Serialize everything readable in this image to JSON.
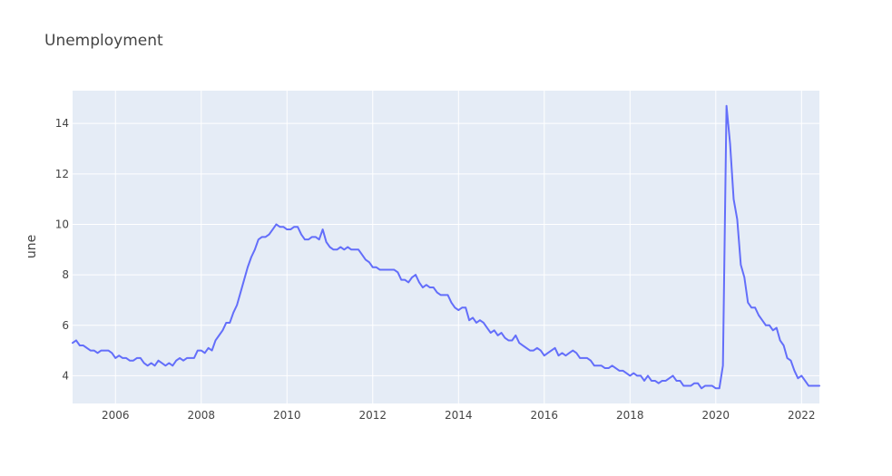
{
  "chart_data": {
    "type": "line",
    "title": "Unemployment",
    "xlabel": "",
    "ylabel": "une",
    "x_start": "2005-01",
    "x_step": "month",
    "xlim": [
      "2005-01",
      "2022-06"
    ],
    "ylim": [
      2.9,
      15.3
    ],
    "x_ticks": [
      "2006",
      "2008",
      "2010",
      "2012",
      "2014",
      "2016",
      "2018",
      "2020",
      "2022"
    ],
    "y_ticks": [
      "4",
      "6",
      "8",
      "10",
      "12",
      "14"
    ],
    "grid": true,
    "line_color": "#636efa",
    "plot_bg": "#e5ecf6",
    "series": [
      {
        "values": [
          5.3,
          5.4,
          5.2,
          5.2,
          5.1,
          5.0,
          5.0,
          4.9,
          5.0,
          5.0,
          5.0,
          4.9,
          4.7,
          4.8,
          4.7,
          4.7,
          4.6,
          4.6,
          4.7,
          4.7,
          4.5,
          4.4,
          4.5,
          4.4,
          4.6,
          4.5,
          4.4,
          4.5,
          4.4,
          4.6,
          4.7,
          4.6,
          4.7,
          4.7,
          4.7,
          5.0,
          5.0,
          4.9,
          5.1,
          5.0,
          5.4,
          5.6,
          5.8,
          6.1,
          6.1,
          6.5,
          6.8,
          7.3,
          7.8,
          8.3,
          8.7,
          9.0,
          9.4,
          9.5,
          9.5,
          9.6,
          9.8,
          10.0,
          9.9,
          9.9,
          9.8,
          9.8,
          9.9,
          9.9,
          9.6,
          9.4,
          9.4,
          9.5,
          9.5,
          9.4,
          9.8,
          9.3,
          9.1,
          9.0,
          9.0,
          9.1,
          9.0,
          9.1,
          9.0,
          9.0,
          9.0,
          8.8,
          8.6,
          8.5,
          8.3,
          8.3,
          8.2,
          8.2,
          8.2,
          8.2,
          8.2,
          8.1,
          7.8,
          7.8,
          7.7,
          7.9,
          8.0,
          7.7,
          7.5,
          7.6,
          7.5,
          7.5,
          7.3,
          7.2,
          7.2,
          7.2,
          6.9,
          6.7,
          6.6,
          6.7,
          6.7,
          6.2,
          6.3,
          6.1,
          6.2,
          6.1,
          5.9,
          5.7,
          5.8,
          5.6,
          5.7,
          5.5,
          5.4,
          5.4,
          5.6,
          5.3,
          5.2,
          5.1,
          5.0,
          5.0,
          5.1,
          5.0,
          4.8,
          4.9,
          5.0,
          5.1,
          4.8,
          4.9,
          4.8,
          4.9,
          5.0,
          4.9,
          4.7,
          4.7,
          4.7,
          4.6,
          4.4,
          4.4,
          4.4,
          4.3,
          4.3,
          4.4,
          4.3,
          4.2,
          4.2,
          4.1,
          4.0,
          4.1,
          4.0,
          4.0,
          3.8,
          4.0,
          3.8,
          3.8,
          3.7,
          3.8,
          3.8,
          3.9,
          4.0,
          3.8,
          3.8,
          3.6,
          3.6,
          3.6,
          3.7,
          3.7,
          3.5,
          3.6,
          3.6,
          3.6,
          3.5,
          3.5,
          4.4,
          14.7,
          13.2,
          11.0,
          10.2,
          8.4,
          7.9,
          6.9,
          6.7,
          6.7,
          6.4,
          6.2,
          6.0,
          6.0,
          5.8,
          5.9,
          5.4,
          5.2,
          4.7,
          4.6,
          4.2,
          3.9,
          4.0,
          3.8,
          3.6,
          3.6,
          3.6,
          3.6
        ]
      }
    ]
  }
}
